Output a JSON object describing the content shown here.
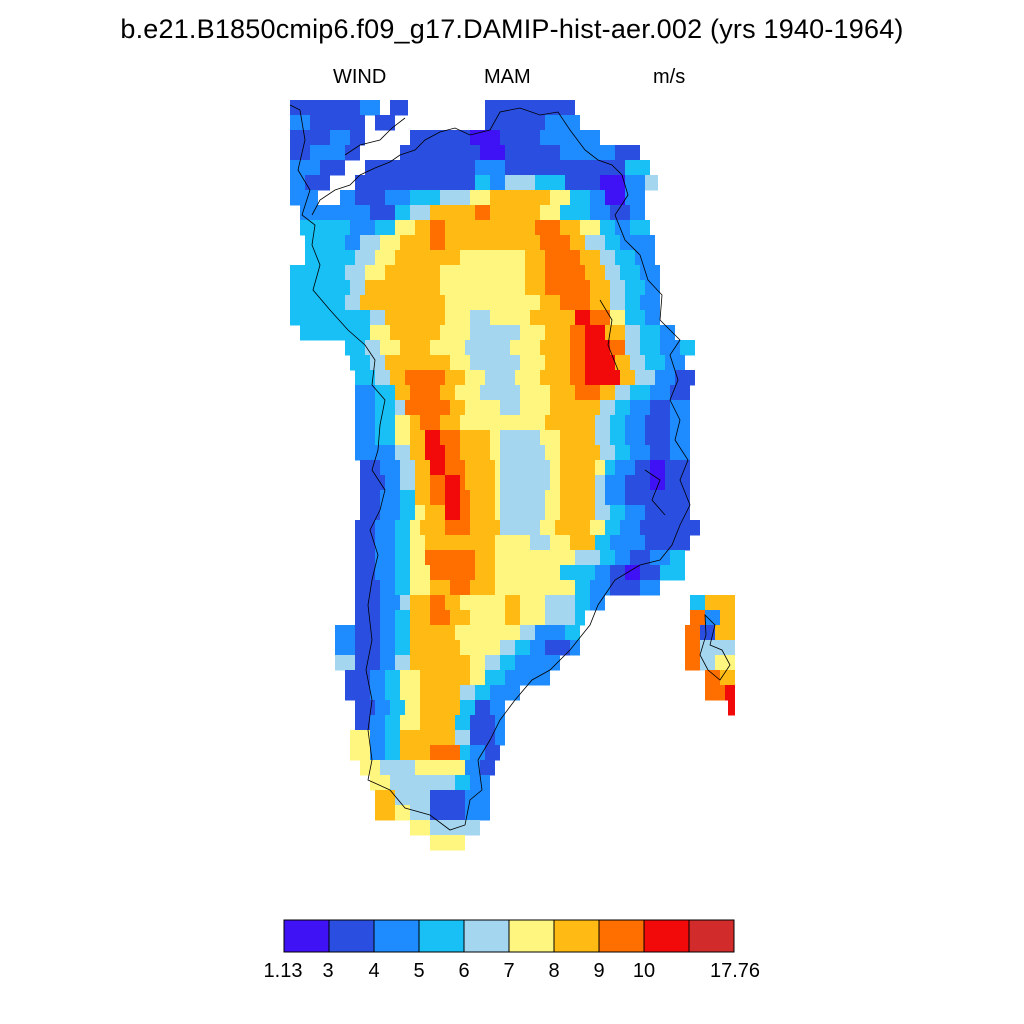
{
  "title": "b.e21.B1850cmip6.f09_g17.DAMIP-hist-aer.002 (yrs 1940-1964)",
  "subtitle": {
    "variable": "WIND",
    "season": "MAM",
    "units": "m/s"
  },
  "colorbar": {
    "colors": [
      "#3f11f5",
      "#2a4fe0",
      "#1e8cff",
      "#19c0f5",
      "#a4d6f0",
      "#fff680",
      "#ffbb14",
      "#ff6f00",
      "#f20a0a",
      "#d22b2b"
    ],
    "labels": [
      "1.13",
      "3",
      "4",
      "5",
      "6",
      "7",
      "8",
      "9",
      "10",
      "17.76"
    ]
  },
  "map": {
    "region": "Greenland",
    "fill_colors_used": [
      "#3f11f5",
      "#2a4fe0",
      "#1e8cff",
      "#19c0f5",
      "#a4d6f0",
      "#fff680",
      "#ffbb14",
      "#ff6f00",
      "#f20a0a"
    ]
  }
}
